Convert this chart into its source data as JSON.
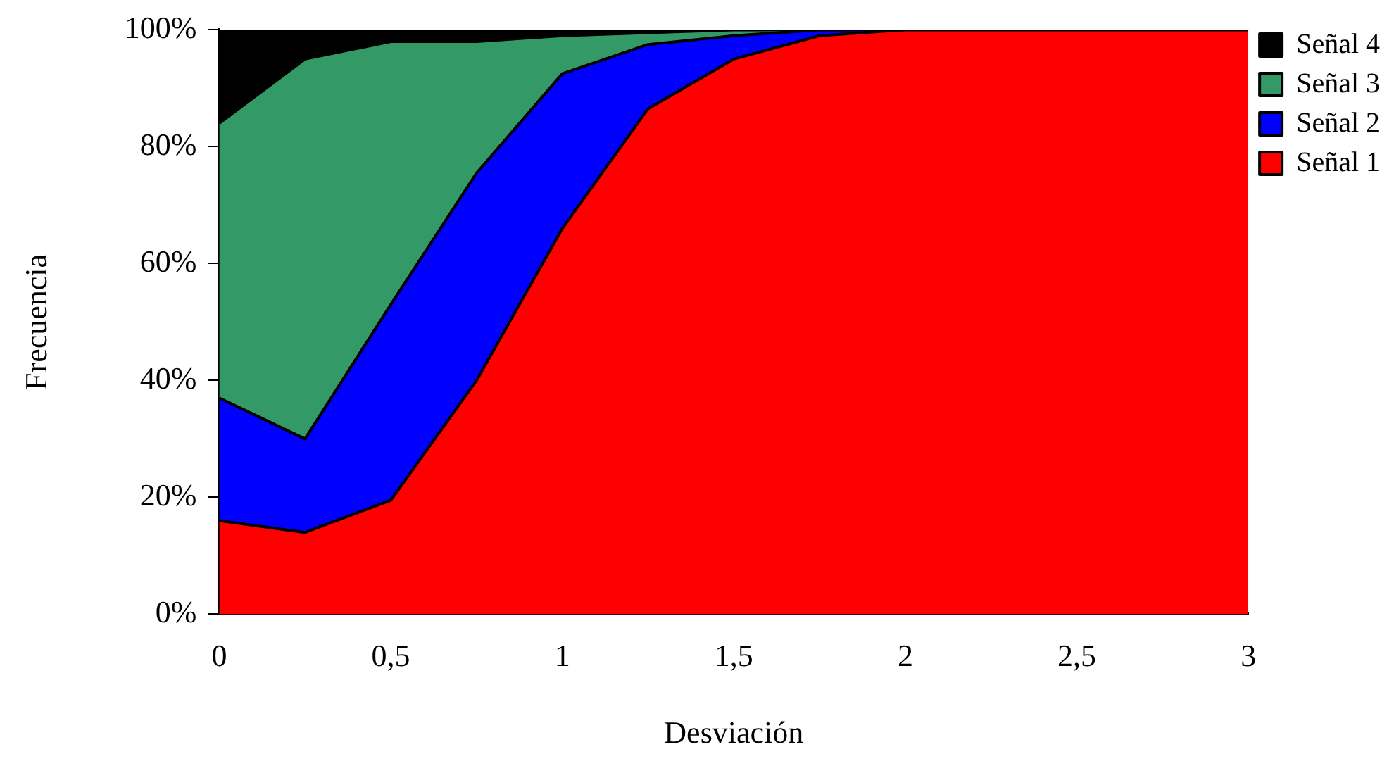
{
  "chart_data": {
    "type": "area",
    "xlabel": "Desviación",
    "ylabel": "Frecuencia",
    "stacked": true,
    "legend": "top right",
    "x": [
      0,
      0.25,
      0.5,
      0.75,
      1,
      1.25,
      1.5,
      1.75,
      2,
      2.25,
      2.5,
      2.75,
      3
    ],
    "xlim": [
      0,
      3
    ],
    "xticks": [
      0,
      {
        "value": 0.5,
        "label": "0,5"
      },
      1,
      {
        "value": 1.5,
        "label": "1,5"
      },
      2,
      {
        "value": 2.5,
        "label": "2,5"
      },
      3
    ],
    "ylim": [
      0,
      100
    ],
    "yticks": [
      {
        "value": 0,
        "label": "0%"
      },
      {
        "value": 20,
        "label": "20%"
      },
      {
        "value": 40,
        "label": "40%"
      },
      {
        "value": 60,
        "label": "60%"
      },
      {
        "value": 80,
        "label": "80%"
      },
      {
        "value": 100,
        "label": "100%"
      }
    ],
    "series": [
      {
        "name": "Señal 1",
        "color": "#ff0000",
        "values": [
          16,
          14,
          19.5,
          40,
          66,
          86.5,
          95,
          99,
          100,
          100,
          100,
          100,
          100
        ]
      },
      {
        "name": "Señal 2",
        "color": "#0000ff",
        "values": [
          21,
          16,
          33.5,
          35.5,
          26.5,
          11,
          4,
          1,
          0,
          0,
          0,
          0,
          0
        ]
      },
      {
        "name": "Señal 3",
        "color": "#339966",
        "values": [
          47,
          65,
          45,
          22.5,
          6.5,
          2,
          1,
          0,
          0,
          0,
          0,
          0,
          0
        ]
      },
      {
        "name": "Señal 4",
        "color": "#000000",
        "values": [
          16,
          5,
          2,
          2,
          1,
          0.5,
          0,
          0,
          0,
          0,
          0,
          0,
          0
        ]
      }
    ]
  }
}
